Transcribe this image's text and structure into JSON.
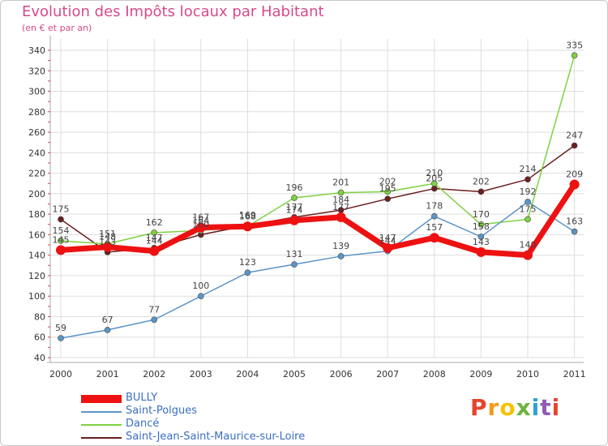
{
  "header": {
    "title": "Evolution des Impôts locaux par Habitant",
    "subtitle": "(en € et par an)"
  },
  "logo": {
    "text": "Proxiti",
    "letters": [
      "P",
      "r",
      "o",
      "x",
      "i",
      "t",
      "i"
    ],
    "colors": [
      "#e8432d",
      "#f39b1a",
      "#f5c400",
      "#6db33f",
      "#2f9fd8",
      "#8e5bb5",
      "#e8432d"
    ]
  },
  "chart_data": {
    "type": "line",
    "title": "Evolution des Impôts locaux par Habitant",
    "subtitle": "(en € et par an)",
    "xlabel": "",
    "ylabel": "",
    "x": [
      "2000",
      "2001",
      "2002",
      "2003",
      "2004",
      "2005",
      "2006",
      "2007",
      "2008",
      "2009",
      "2010",
      "2011"
    ],
    "ylim": [
      40,
      340
    ],
    "yticks": [
      40,
      60,
      80,
      100,
      120,
      140,
      160,
      180,
      200,
      220,
      240,
      260,
      280,
      300,
      320,
      340
    ],
    "grid": true,
    "legend_position": "bottom-left",
    "series": [
      {
        "name": "Saint-Jean-Saint-Maurice-sur-Loire",
        "color": "#6b1f1f",
        "values": [
          175,
          143,
          147,
          160,
          169,
          177,
          184,
          195,
          205,
          202,
          214,
          247
        ]
      },
      {
        "name": "Dancé",
        "color": "#7fd142",
        "values": [
          154,
          151,
          162,
          164,
          168,
          196,
          201,
          202,
          210,
          170,
          175,
          335
        ]
      },
      {
        "name": "Saint-Polgues",
        "color": "#5b95c8",
        "values": [
          59,
          67,
          77,
          100,
          123,
          131,
          139,
          144,
          178,
          158,
          192,
          163
        ]
      },
      {
        "name": "BULLY",
        "color": "#ee1111",
        "values": [
          145,
          148,
          144,
          167,
          168,
          174,
          177,
          147,
          157,
          143,
          140,
          209
        ]
      }
    ],
    "legend": [
      "BULLY",
      "Saint-Polgues",
      "Dancé",
      "Saint-Jean-Saint-Maurice-sur-Loire"
    ]
  }
}
